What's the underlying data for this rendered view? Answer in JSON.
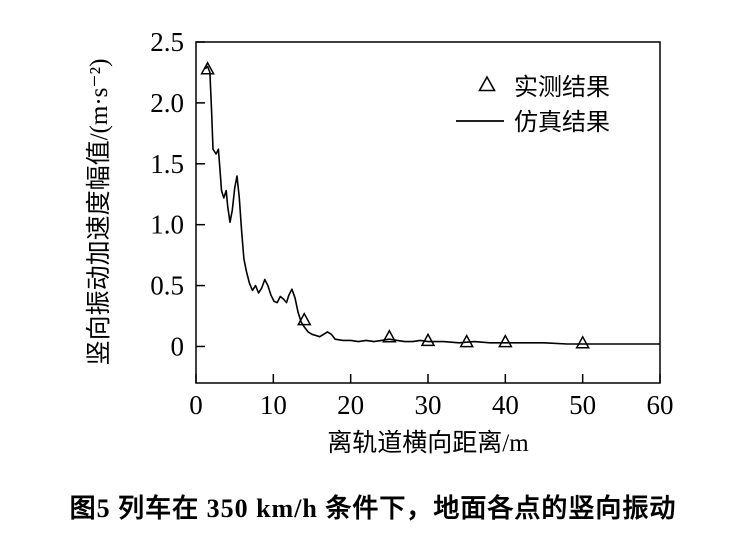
{
  "figure": {
    "caption": "图5  列车在 350 km/h 条件下，地面各点的竖向振动"
  },
  "chart_data": {
    "type": "line",
    "title": "",
    "xlabel": "离轨道横向距离/m",
    "ylabel": "竖向振动加速度幅值/(m·s⁻²)",
    "xlim": [
      0,
      60
    ],
    "ylim": [
      -0.3,
      2.5
    ],
    "xtick_values": [
      0,
      10,
      20,
      30,
      40,
      50,
      60
    ],
    "xtick_labels": [
      "0",
      "10",
      "20",
      "30",
      "40",
      "50",
      "60"
    ],
    "ytick_values": [
      0,
      0.5,
      1.0,
      1.5,
      2.0,
      2.5
    ],
    "ytick_labels": [
      "0",
      "0.5",
      "1.0",
      "1.5",
      "2.0",
      "2.5"
    ],
    "grid": false,
    "legend_position": "upper-right-inside",
    "line_color": "#000000",
    "marker_color": "#000000",
    "series": [
      {
        "name": "实测结果",
        "type": "scatter",
        "marker": "open-triangle",
        "color": "#000000",
        "points": [
          [
            1.5,
            2.28
          ],
          [
            14,
            0.22
          ],
          [
            25,
            0.08
          ],
          [
            30,
            0.05
          ],
          [
            35,
            0.04
          ],
          [
            40,
            0.04
          ],
          [
            50,
            0.03
          ]
        ]
      },
      {
        "name": "仿真结果",
        "type": "line",
        "color": "#000000",
        "points": [
          [
            1.2,
            2.28
          ],
          [
            1.5,
            2.3
          ],
          [
            1.8,
            2.25
          ],
          [
            2.0,
            1.95
          ],
          [
            2.2,
            1.62
          ],
          [
            2.6,
            1.58
          ],
          [
            2.9,
            1.62
          ],
          [
            3.1,
            1.45
          ],
          [
            3.3,
            1.28
          ],
          [
            3.6,
            1.22
          ],
          [
            3.9,
            1.28
          ],
          [
            4.1,
            1.15
          ],
          [
            4.4,
            1.02
          ],
          [
            4.7,
            1.12
          ],
          [
            5.0,
            1.3
          ],
          [
            5.3,
            1.4
          ],
          [
            5.6,
            1.22
          ],
          [
            5.9,
            0.95
          ],
          [
            6.2,
            0.72
          ],
          [
            6.5,
            0.62
          ],
          [
            6.9,
            0.52
          ],
          [
            7.3,
            0.46
          ],
          [
            7.7,
            0.5
          ],
          [
            8.1,
            0.44
          ],
          [
            8.5,
            0.48
          ],
          [
            8.9,
            0.55
          ],
          [
            9.3,
            0.5
          ],
          [
            9.7,
            0.42
          ],
          [
            10.1,
            0.37
          ],
          [
            10.5,
            0.36
          ],
          [
            10.9,
            0.41
          ],
          [
            11.3,
            0.39
          ],
          [
            11.7,
            0.36
          ],
          [
            12.0,
            0.42
          ],
          [
            12.4,
            0.47
          ],
          [
            12.8,
            0.4
          ],
          [
            13.2,
            0.28
          ],
          [
            13.6,
            0.2
          ],
          [
            14.0,
            0.16
          ],
          [
            14.5,
            0.12
          ],
          [
            15.0,
            0.1
          ],
          [
            15.5,
            0.09
          ],
          [
            16.0,
            0.08
          ],
          [
            16.5,
            0.1
          ],
          [
            17.0,
            0.12
          ],
          [
            17.5,
            0.1
          ],
          [
            18.0,
            0.06
          ],
          [
            19.0,
            0.05
          ],
          [
            20.0,
            0.05
          ],
          [
            21.0,
            0.04
          ],
          [
            22.0,
            0.05
          ],
          [
            23.0,
            0.04
          ],
          [
            24.0,
            0.05
          ],
          [
            25.0,
            0.06
          ],
          [
            26.0,
            0.05
          ],
          [
            27.0,
            0.04
          ],
          [
            28.0,
            0.04
          ],
          [
            29.0,
            0.05
          ],
          [
            30.0,
            0.04
          ],
          [
            32.0,
            0.04
          ],
          [
            34.0,
            0.03
          ],
          [
            36.0,
            0.04
          ],
          [
            38.0,
            0.03
          ],
          [
            40.0,
            0.03
          ],
          [
            42.0,
            0.03
          ],
          [
            45.0,
            0.03
          ],
          [
            48.0,
            0.02
          ],
          [
            50.0,
            0.02
          ],
          [
            55.0,
            0.02
          ],
          [
            60.0,
            0.02
          ]
        ]
      }
    ]
  }
}
